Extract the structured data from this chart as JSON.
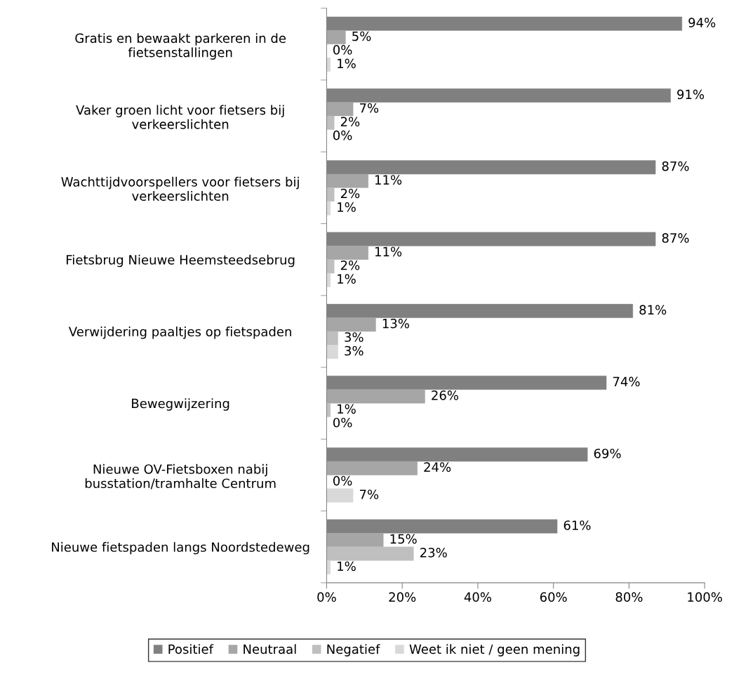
{
  "chart_data": {
    "type": "bar",
    "orientation": "horizontal",
    "categories": [
      "Gratis en bewaakt parkeren in de\nfietsenstallingen",
      "Vaker groen licht voor fietsers bij\nverkeerslichten",
      "Wachttijdvoorspellers voor fietsers bij\nverkeerslichten",
      "Fietsbrug Nieuwe Heemsteedsebrug",
      "Verwijdering paaltjes op fietspaden",
      "Bewegwijzering",
      "Nieuwe OV-Fietsboxen nabij\nbusstation/tramhalte Centrum",
      "Nieuwe fietspaden langs Noordstedeweg"
    ],
    "series": [
      {
        "name": "Positief",
        "color": "#808080",
        "values": [
          94,
          91,
          87,
          87,
          81,
          74,
          69,
          61
        ],
        "value_labels": [
          "94%",
          "91%",
          "87%",
          "87%",
          "81%",
          "74%",
          "69%",
          "61%"
        ]
      },
      {
        "name": "Neutraal",
        "color": "#a6a6a6",
        "values": [
          5,
          7,
          11,
          11,
          13,
          26,
          24,
          15
        ],
        "value_labels": [
          "5%",
          "7%",
          "11%",
          "11%",
          "13%",
          "26%",
          "24%",
          "15%"
        ]
      },
      {
        "name": "Negatief",
        "color": "#bfbfbf",
        "values": [
          0,
          2,
          2,
          2,
          3,
          1,
          0,
          23
        ],
        "value_labels": [
          "0%",
          "2%",
          "2%",
          "2%",
          "3%",
          "1%",
          "0%",
          "23%"
        ]
      },
      {
        "name": "Weet ik niet / geen mening",
        "color": "#d9d9d9",
        "values": [
          1,
          0,
          1,
          1,
          3,
          0,
          7,
          1
        ],
        "value_labels": [
          "1%",
          "0%",
          "1%",
          "1%",
          "3%",
          "0%",
          "7%",
          "1%"
        ]
      }
    ],
    "xlim": [
      0,
      100
    ],
    "xticks": [
      {
        "value": 0,
        "label": "0%"
      },
      {
        "value": 20,
        "label": "20%"
      },
      {
        "value": 40,
        "label": "40%"
      },
      {
        "value": 60,
        "label": "60%"
      },
      {
        "value": 80,
        "label": "80%"
      },
      {
        "value": 100,
        "label": "100%"
      }
    ],
    "grid": false,
    "legend": "bottom"
  }
}
